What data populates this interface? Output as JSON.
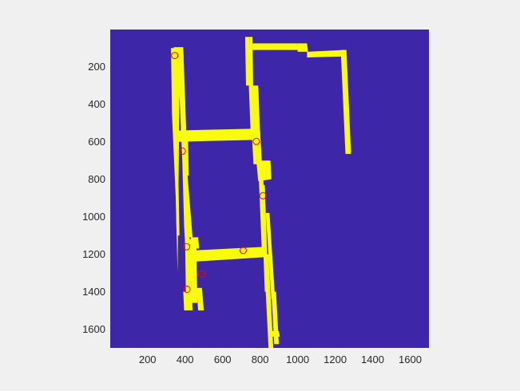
{
  "chart_data": {
    "type": "heatmap",
    "title": "",
    "xlabel": "",
    "ylabel": "",
    "xlim": [
      1,
      1700
    ],
    "ylim": [
      1,
      1700
    ],
    "y_reversed": true,
    "grid": false,
    "colors": {
      "background": "#3d26a8",
      "mask": "#f9fb0e",
      "markers": "#ff0000",
      "figure": "#f0f0f0",
      "ticks": "#262626"
    },
    "x_ticks": [
      200,
      400,
      600,
      800,
      1000,
      1200,
      1400,
      1600
    ],
    "x_tick_labels": [
      "200",
      "400",
      "600",
      "800",
      "1000",
      "1200",
      "1400",
      "1600"
    ],
    "y_ticks": [
      200,
      400,
      600,
      800,
      1000,
      1200,
      1400,
      1600
    ],
    "y_tick_labels": [
      "200",
      "400",
      "600",
      "800",
      "1000",
      "1200",
      "1400",
      "1600"
    ],
    "mask_regions": [
      [
        [
          325,
          100
        ],
        [
          390,
          100
        ],
        [
          410,
          650
        ],
        [
          420,
          1000
        ],
        [
          440,
          1500
        ],
        [
          420,
          1500
        ],
        [
          395,
          1050
        ],
        [
          385,
          700
        ],
        [
          370,
          350
        ],
        [
          360,
          1300
        ],
        [
          350,
          900
        ],
        [
          330,
          450
        ]
      ],
      [
        [
          340,
          95
        ],
        [
          390,
          95
        ],
        [
          395,
          260
        ],
        [
          350,
          260
        ]
      ],
      [
        [
          350,
          540
        ],
        [
          780,
          530
        ],
        [
          785,
          590
        ],
        [
          355,
          600
        ]
      ],
      [
        [
          380,
          560
        ],
        [
          415,
          560
        ],
        [
          420,
          780
        ],
        [
          390,
          780
        ]
      ],
      [
        [
          345,
          560
        ],
        [
          360,
          560
        ],
        [
          370,
          1100
        ],
        [
          355,
          1100
        ]
      ],
      [
        [
          395,
          800
        ],
        [
          415,
          800
        ],
        [
          440,
          1110
        ],
        [
          420,
          1110
        ]
      ],
      [
        [
          430,
          1110
        ],
        [
          470,
          1110
        ],
        [
          475,
          1170
        ],
        [
          440,
          1170
        ]
      ],
      [
        [
          400,
          1120
        ],
        [
          460,
          1120
        ],
        [
          465,
          1460
        ],
        [
          405,
          1460
        ]
      ],
      [
        [
          390,
          1400
        ],
        [
          420,
          1400
        ],
        [
          425,
          1500
        ],
        [
          395,
          1500
        ]
      ],
      [
        [
          460,
          1380
        ],
        [
          490,
          1380
        ],
        [
          500,
          1500
        ],
        [
          470,
          1500
        ]
      ],
      [
        [
          440,
          1180
        ],
        [
          830,
          1160
        ],
        [
          835,
          1215
        ],
        [
          445,
          1240
        ]
      ],
      [
        [
          720,
          40
        ],
        [
          745,
          40
        ],
        [
          750,
          300
        ],
        [
          725,
          300
        ]
      ],
      [
        [
          745,
          40
        ],
        [
          760,
          40
        ],
        [
          765,
          500
        ],
        [
          750,
          500
        ]
      ],
      [
        [
          760,
          90
        ],
        [
          1050,
          90
        ],
        [
          1050,
          110
        ],
        [
          760,
          110
        ]
      ],
      [
        [
          760,
          75
        ],
        [
          1000,
          75
        ],
        [
          1000,
          95
        ],
        [
          760,
          95
        ]
      ],
      [
        [
          1000,
          75
        ],
        [
          1050,
          75
        ],
        [
          1055,
          120
        ],
        [
          1000,
          120
        ]
      ],
      [
        [
          1050,
          120
        ],
        [
          1250,
          110
        ],
        [
          1250,
          145
        ],
        [
          1050,
          150
        ]
      ],
      [
        [
          1230,
          110
        ],
        [
          1260,
          110
        ],
        [
          1285,
          665
        ],
        [
          1255,
          665
        ]
      ],
      [
        [
          740,
          300
        ],
        [
          790,
          300
        ],
        [
          800,
          560
        ],
        [
          750,
          560
        ]
      ],
      [
        [
          755,
          540
        ],
        [
          800,
          540
        ],
        [
          810,
          720
        ],
        [
          765,
          720
        ]
      ],
      [
        [
          780,
          700
        ],
        [
          855,
          700
        ],
        [
          860,
          800
        ],
        [
          790,
          810
        ]
      ],
      [
        [
          790,
          720
        ],
        [
          815,
          720
        ],
        [
          830,
          1200
        ],
        [
          810,
          1200
        ]
      ],
      [
        [
          805,
          830
        ],
        [
          825,
          830
        ],
        [
          845,
          1400
        ],
        [
          825,
          1400
        ]
      ],
      [
        [
          830,
          980
        ],
        [
          850,
          980
        ],
        [
          880,
          1440
        ],
        [
          860,
          1440
        ]
      ],
      [
        [
          820,
          1200
        ],
        [
          845,
          1200
        ],
        [
          870,
          1700
        ],
        [
          845,
          1700
        ]
      ],
      [
        [
          860,
          1400
        ],
        [
          885,
          1400
        ],
        [
          900,
          1680
        ],
        [
          875,
          1680
        ]
      ],
      [
        [
          850,
          1610
        ],
        [
          900,
          1610
        ],
        [
          905,
          1640
        ],
        [
          855,
          1640
        ]
      ],
      [
        [
          770,
          610
        ],
        [
          795,
          610
        ],
        [
          800,
          680
        ],
        [
          775,
          680
        ]
      ]
    ],
    "markers": {
      "name": "",
      "style": "o",
      "points": [
        {
          "x": 345,
          "y": 140
        },
        {
          "x": 780,
          "y": 598
        },
        {
          "x": 385,
          "y": 650
        },
        {
          "x": 815,
          "y": 888
        },
        {
          "x": 408,
          "y": 1160
        },
        {
          "x": 710,
          "y": 1180
        },
        {
          "x": 488,
          "y": 1305
        },
        {
          "x": 410,
          "y": 1387
        }
      ]
    }
  }
}
